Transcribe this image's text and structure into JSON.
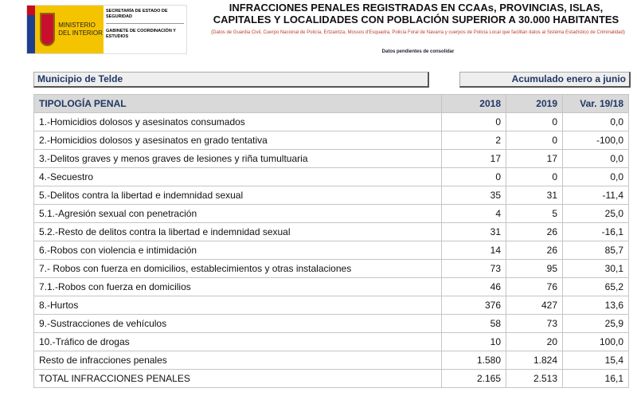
{
  "logo": {
    "ministry": "MINISTERIO DEL INTERIOR",
    "secretaria": "SECRETARÍA DE ESTADO DE SEGURIDAD",
    "gabinete": "GABINETE DE COORDINACIÓN Y ESTUDIOS"
  },
  "header": {
    "title": "INFRACCIONES PENALES REGISTRADAS EN CCAAs, PROVINCIAS, ISLAS, CAPITALES Y LOCALIDADES CON POBLACIÓN SUPERIOR A 30.000 HABITANTES",
    "subtitle": "(Datos de Guardia Civil, Cuerpo Nacional de Policía, Ertzaintza, Mossos d'Esquadra, Policía Foral de Navarra y cuerpos de Policía Local que facilitan datos al Sistema Estadístico de Criminalidad)",
    "note": "Datos pendientes de consolidar"
  },
  "municipio": "Municipio de Telde",
  "periodo": "Acumulado enero a junio",
  "table": {
    "headers": [
      "TIPOLOGÍA PENAL",
      "2018",
      "2019",
      "Var. 19/18"
    ],
    "rows": [
      [
        "1.-Homicidios dolosos y asesinatos consumados",
        "0",
        "0",
        "0,0"
      ],
      [
        "2.-Homicidios dolosos y asesinatos en grado tentativa",
        "2",
        "0",
        "-100,0"
      ],
      [
        "3.-Delitos graves y menos graves de lesiones y riña tumultuaria",
        "17",
        "17",
        "0,0"
      ],
      [
        "4.-Secuestro",
        "0",
        "0",
        "0,0"
      ],
      [
        "5.-Delitos contra la libertad e indemnidad sexual",
        "35",
        "31",
        "-11,4"
      ],
      [
        "5.1.-Agresión sexual con penetración",
        "4",
        "5",
        "25,0"
      ],
      [
        "5.2.-Resto de delitos contra la libertad e indemnidad sexual",
        "31",
        "26",
        "-16,1"
      ],
      [
        "6.-Robos con violencia e intimidación",
        "14",
        "26",
        "85,7"
      ],
      [
        "7.- Robos con fuerza en domicilios, establecimientos y otras instalaciones",
        "73",
        "95",
        "30,1"
      ],
      [
        "7.1.-Robos con fuerza en domicilios",
        "46",
        "76",
        "65,2"
      ],
      [
        "8.-Hurtos",
        "376",
        "427",
        "13,6"
      ],
      [
        "9.-Sustracciones de vehículos",
        "58",
        "73",
        "25,9"
      ],
      [
        "10.-Tráfico de drogas",
        "10",
        "20",
        "100,0"
      ],
      [
        "Resto de infracciones penales",
        "1.580",
        "1.824",
        "15,4"
      ],
      [
        "TOTAL INFRACCIONES PENALES",
        "2.165",
        "2.513",
        "16,1"
      ]
    ]
  }
}
